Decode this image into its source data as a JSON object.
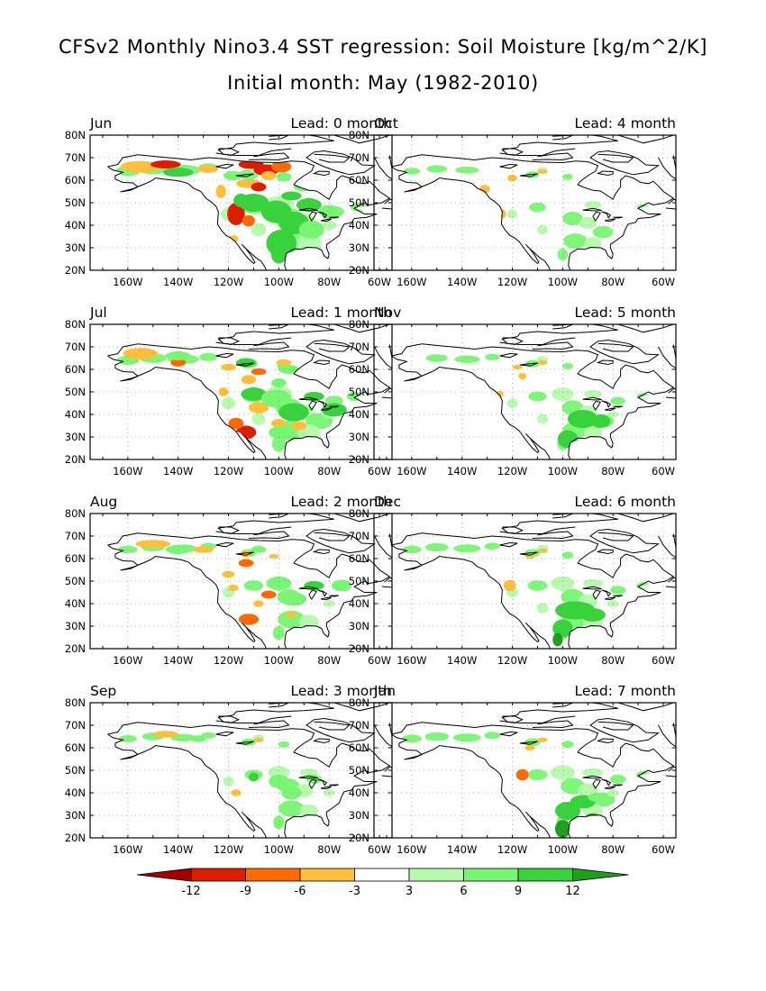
{
  "header": {
    "title_line1": "CFSv2 Monthly Nino3.4 SST regression: Soil Moisture [kg/m^2/K]",
    "title_line2": "Initial month: May (1982-2010)"
  },
  "axes": {
    "lat_labels": [
      "80N",
      "70N",
      "60N",
      "50N",
      "40N",
      "30N",
      "20N"
    ],
    "lon_labels": [
      "160W",
      "140W",
      "120W",
      "100W",
      "80W",
      "60W"
    ]
  },
  "panels": [
    {
      "month": "Jun",
      "lead": "Lead: 0 month",
      "intensity": 1.0
    },
    {
      "month": "Oct",
      "lead": "Lead: 4 month",
      "intensity": 0.35
    },
    {
      "month": "Jul",
      "lead": "Lead: 1 month",
      "intensity": 0.8
    },
    {
      "month": "Nov",
      "lead": "Lead: 5 month",
      "intensity": 0.45
    },
    {
      "month": "Aug",
      "lead": "Lead: 2 month",
      "intensity": 0.55
    },
    {
      "month": "Dec",
      "lead": "Lead: 6 month",
      "intensity": 0.55
    },
    {
      "month": "Sep",
      "lead": "Lead: 3 month",
      "intensity": 0.45
    },
    {
      "month": "Jan",
      "lead": "Lead: 7 month",
      "intensity": 0.6
    }
  ],
  "colorbar": {
    "labels": [
      "-12",
      "-9",
      "-6",
      "-3",
      "3",
      "6",
      "9",
      "12"
    ],
    "colors": [
      "#a50000",
      "#dd1c00",
      "#ff6a00",
      "#ffbe3c",
      "#ffffff",
      "#b4faaa",
      "#78f573",
      "#37d23c",
      "#1ea01e"
    ]
  }
}
